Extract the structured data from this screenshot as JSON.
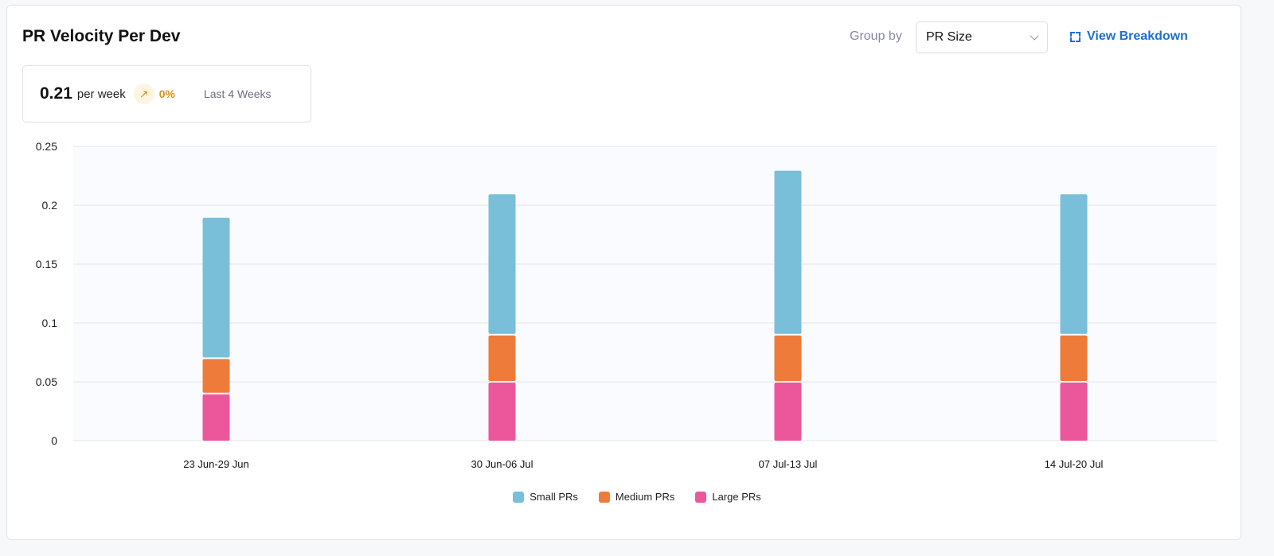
{
  "header": {
    "title": "PR Velocity Per Dev",
    "group_by_label": "Group by",
    "group_by_value": "PR Size",
    "view_breakdown": "View Breakdown"
  },
  "stat": {
    "value": "0.21",
    "unit": "per week",
    "trend_icon": "arrow-up-right-icon",
    "change": "0%",
    "period": "Last 4 Weeks",
    "trend_color": "#d8921c"
  },
  "chart_data": {
    "type": "bar",
    "stacked": true,
    "categories": [
      "23 Jun-29 Jun",
      "30 Jun-06 Jul",
      "07 Jul-13 Jul",
      "14 Jul-20 Jul"
    ],
    "series": [
      {
        "name": "Large PRs",
        "color": "#ec579b",
        "values": [
          0.04,
          0.05,
          0.05,
          0.05
        ]
      },
      {
        "name": "Medium PRs",
        "color": "#ef7b3b",
        "values": [
          0.03,
          0.04,
          0.04,
          0.04
        ]
      },
      {
        "name": "Small PRs",
        "color": "#7abfd9",
        "values": [
          0.12,
          0.12,
          0.14,
          0.12
        ]
      }
    ],
    "ylim": [
      0,
      0.25
    ],
    "yticks": [
      "0",
      "0.05",
      "0.1",
      "0.15",
      "0.2",
      "0.25"
    ],
    "grid": true,
    "legend": "bottom-center",
    "legend_order": [
      "Small PRs",
      "Medium PRs",
      "Large PRs"
    ]
  }
}
